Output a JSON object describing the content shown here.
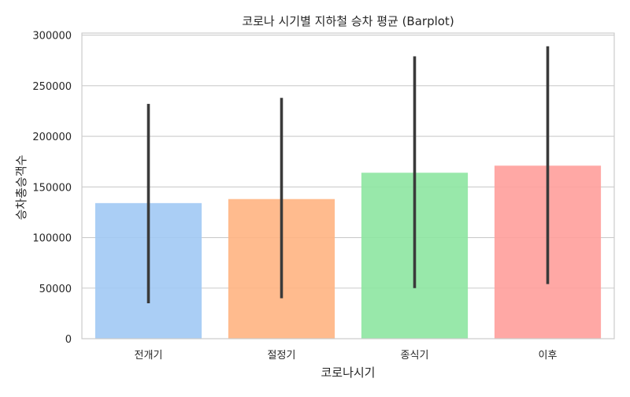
{
  "chart_data": {
    "type": "bar",
    "title": "코로나 시기별 지하철 승차 평균 (Barplot)",
    "xlabel": "코로나시기",
    "ylabel": "승차총승객수",
    "categories": [
      "전개기",
      "절정기",
      "종식기",
      "이후"
    ],
    "values": [
      134000,
      138000,
      164000,
      171000
    ],
    "error_bars": [
      {
        "low": 35000,
        "high": 232000
      },
      {
        "low": 40000,
        "high": 238000
      },
      {
        "low": 50000,
        "high": 279000
      },
      {
        "low": 54000,
        "high": 289000
      }
    ],
    "colors": [
      "#a1c9f4",
      "#ffb482",
      "#8de5a1",
      "#ff9f9b"
    ],
    "error_bar_color": "#3a3a3a",
    "ylim": [
      0,
      302000
    ],
    "yticks": [
      0,
      50000,
      100000,
      150000,
      200000,
      250000,
      300000
    ],
    "ytick_labels": [
      "0",
      "50000",
      "100000",
      "150000",
      "200000",
      "250000",
      "300000"
    ],
    "grid": "horizontal",
    "legend": "none",
    "bar_opacity": 0.9
  }
}
